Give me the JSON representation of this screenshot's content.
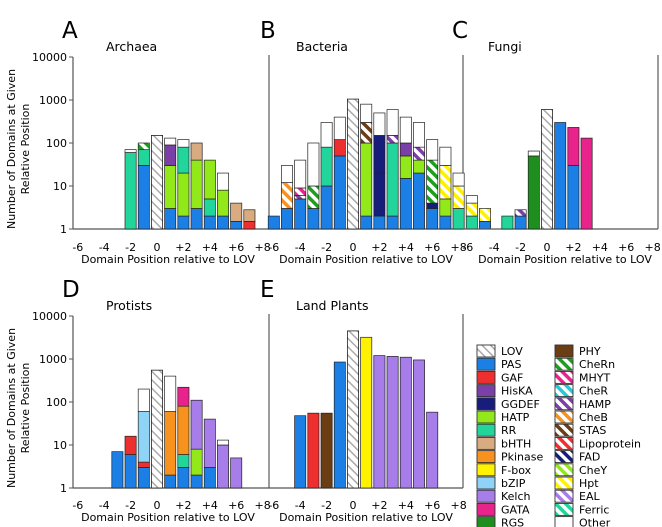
{
  "figure": {
    "ylabel_line1": "Number of Domains at Given",
    "ylabel_line2": "Relative Position",
    "xlabel": "Domain Position relative to LOV",
    "y_tick_labels": [
      "1",
      "10",
      "100",
      "1000",
      "10000"
    ],
    "x_tick_labels": [
      "-6",
      "-4",
      "-2",
      "0",
      "+2",
      "+4",
      "+6",
      "+8"
    ]
  },
  "legend": [
    {
      "label": "LOV",
      "color": "#ffffff",
      "pattern": "hatch-gray"
    },
    {
      "label": "PAS",
      "color": "#1b7fe6"
    },
    {
      "label": "GAF",
      "color": "#ee2f2f"
    },
    {
      "label": "HisKA",
      "color": "#7b3fa8"
    },
    {
      "label": "GGDEF",
      "color": "#161d7a"
    },
    {
      "label": "HATP",
      "color": "#93e81a"
    },
    {
      "label": "RR",
      "color": "#22d69b"
    },
    {
      "label": "bHTH",
      "color": "#d8ab80"
    },
    {
      "label": "Pkinase",
      "color": "#f7921e"
    },
    {
      "label": "F-box",
      "color": "#fff200"
    },
    {
      "label": "bZIP",
      "color": "#8fd3f7"
    },
    {
      "label": "Kelch",
      "color": "#a77de9"
    },
    {
      "label": "GATA",
      "color": "#e8238c"
    },
    {
      "label": "RGS",
      "color": "#1e8f1e"
    },
    {
      "label": "PHY",
      "color": "#6b3d12"
    },
    {
      "label": "CheRn",
      "color": "#ffffff",
      "pattern": "stripe",
      "stripe_color": "#1e9e1e"
    },
    {
      "label": "MHYT",
      "color": "#ffffff",
      "pattern": "stripe",
      "stripe_color": "#e8238c"
    },
    {
      "label": "CheR",
      "color": "#ffffff",
      "pattern": "stripe",
      "stripe_color": "#22c9d6"
    },
    {
      "label": "HAMP",
      "color": "#ffffff",
      "pattern": "stripe",
      "stripe_color": "#7b3fa8"
    },
    {
      "label": "CheB",
      "color": "#ffffff",
      "pattern": "stripe",
      "stripe_color": "#f7921e"
    },
    {
      "label": "STAS",
      "color": "#ffffff",
      "pattern": "stripe",
      "stripe_color": "#6b3d12"
    },
    {
      "label": "Lipoprotein",
      "color": "#ffffff",
      "pattern": "stripe",
      "stripe_color": "#ee2f2f"
    },
    {
      "label": "FAD",
      "color": "#ffffff",
      "pattern": "stripe",
      "stripe_color": "#161d7a"
    },
    {
      "label": "CheY",
      "color": "#ffffff",
      "pattern": "stripe",
      "stripe_color": "#93e81a"
    },
    {
      "label": "Hpt",
      "color": "#ffffff",
      "pattern": "stripe",
      "stripe_color": "#fff200"
    },
    {
      "label": "EAL",
      "color": "#ffffff",
      "pattern": "stripe",
      "stripe_color": "#a77de9"
    },
    {
      "label": "Ferric",
      "color": "#ffffff",
      "pattern": "stripe",
      "stripe_color": "#22d69b"
    },
    {
      "label": "Other",
      "color": "#ffffff"
    }
  ],
  "chart_data": [
    {
      "letter": "A",
      "title": "Archaea",
      "type": "bar",
      "yscale": "log",
      "ylim": [
        1,
        10000
      ],
      "stacks": [
        {
          "x": -2,
          "segments": [
            [
              "RR",
              60
            ],
            [
              "Other",
              70
            ]
          ]
        },
        {
          "x": -1,
          "segments": [
            [
              "PAS",
              30
            ],
            [
              "RR",
              70
            ],
            [
              "CheRn",
              100
            ]
          ]
        },
        {
          "x": 1,
          "segments": [
            [
              "PAS",
              3
            ],
            [
              "HATP",
              30
            ],
            [
              "HisKA",
              90
            ],
            [
              "Other",
              130
            ]
          ]
        },
        {
          "x": 2,
          "segments": [
            [
              "PAS",
              2
            ],
            [
              "HATP",
              20
            ],
            [
              "RR",
              80
            ],
            [
              "Other",
              120
            ]
          ]
        },
        {
          "x": 3,
          "segments": [
            [
              "PAS",
              3
            ],
            [
              "HATP",
              40
            ],
            [
              "bHTH",
              100
            ]
          ]
        },
        {
          "x": 4,
          "segments": [
            [
              "PAS",
              2
            ],
            [
              "RR",
              5
            ],
            [
              "HATP",
              40
            ]
          ]
        },
        {
          "x": 5,
          "segments": [
            [
              "PAS",
              2
            ],
            [
              "HATP",
              8
            ],
            [
              "Other",
              20
            ]
          ]
        },
        {
          "x": 6,
          "segments": [
            [
              "PAS",
              1.5
            ],
            [
              "bHTH",
              4
            ]
          ]
        },
        {
          "x": 7,
          "segments": [
            [
              "GAF",
              1.5
            ],
            [
              "bHTH",
              2.8
            ]
          ]
        }
      ]
    },
    {
      "letter": "B",
      "title": "Bacteria",
      "type": "bar",
      "yscale": "log",
      "ylim": [
        1,
        10000
      ],
      "stacks": [
        {
          "x": -6,
          "segments": [
            [
              "PAS",
              2
            ],
            [
              "Other",
              2
            ]
          ]
        },
        {
          "x": -5,
          "segments": [
            [
              "PAS",
              3
            ],
            [
              "CheB",
              12
            ],
            [
              "Other",
              30
            ]
          ]
        },
        {
          "x": -4,
          "segments": [
            [
              "PAS",
              5
            ],
            [
              "HAMP",
              6
            ],
            [
              "MHYT",
              9
            ],
            [
              "Other",
              40
            ]
          ]
        },
        {
          "x": -3,
          "segments": [
            [
              "PAS",
              3
            ],
            [
              "CheRn",
              10
            ],
            [
              "Other",
              100
            ]
          ]
        },
        {
          "x": -2,
          "segments": [
            [
              "PAS",
              10
            ],
            [
              "RR",
              80
            ],
            [
              "Other",
              300
            ]
          ]
        },
        {
          "x": -1,
          "segments": [
            [
              "PAS",
              50
            ],
            [
              "GAF",
              120
            ],
            [
              "Other",
              400
            ]
          ]
        },
        {
          "x": 1,
          "segments": [
            [
              "PAS",
              2
            ],
            [
              "HATP",
              100
            ],
            [
              "STAS",
              300
            ],
            [
              "Other",
              800
            ]
          ]
        },
        {
          "x": 2,
          "segments": [
            [
              "PAS",
              2
            ],
            [
              "GGDEF",
              20
            ],
            [
              "GGDEF",
              150
            ],
            [
              "Other",
              500
            ]
          ]
        },
        {
          "x": 3,
          "segments": [
            [
              "PAS",
              2
            ],
            [
              "RR",
              100
            ],
            [
              "HAMP",
              150
            ],
            [
              "Other",
              600
            ]
          ]
        },
        {
          "x": 4,
          "segments": [
            [
              "PAS",
              15
            ],
            [
              "HATP",
              50
            ],
            [
              "HisKA",
              100
            ],
            [
              "Other",
              400
            ]
          ]
        },
        {
          "x": 5,
          "segments": [
            [
              "PAS",
              20
            ],
            [
              "HATP",
              40
            ],
            [
              "HAMP",
              80
            ],
            [
              "Other",
              300
            ]
          ]
        },
        {
          "x": 6,
          "segments": [
            [
              "PAS",
              3
            ],
            [
              "GGDEF",
              4
            ],
            [
              "CheRn",
              40
            ],
            [
              "Other",
              120
            ]
          ]
        },
        {
          "x": 7,
          "segments": [
            [
              "PAS",
              2
            ],
            [
              "HATP",
              5
            ],
            [
              "Hpt",
              30
            ],
            [
              "Other",
              80
            ]
          ]
        },
        {
          "x": 8,
          "segments": [
            [
              "RR",
              3
            ],
            [
              "Hpt",
              10
            ],
            [
              "Other",
              20
            ]
          ]
        },
        {
          "x": 9,
          "segments": [
            [
              "RR",
              2
            ],
            [
              "Hpt",
              4
            ],
            [
              "Other",
              6
            ]
          ]
        },
        {
          "x": 10,
          "segments": [
            [
              "PAS",
              1.5
            ],
            [
              "Hpt",
              3
            ]
          ]
        }
      ]
    },
    {
      "letter": "C",
      "title": "Fungi",
      "type": "bar",
      "yscale": "log",
      "ylim": [
        1,
        10000
      ],
      "stacks": [
        {
          "x": -3,
          "segments": [
            [
              "RR",
              2
            ]
          ]
        },
        {
          "x": -2,
          "segments": [
            [
              "PAS",
              2
            ],
            [
              "HAMP",
              2.8
            ]
          ]
        },
        {
          "x": -1,
          "segments": [
            [
              "RGS",
              50
            ],
            [
              "Other",
              65
            ]
          ]
        },
        {
          "x": 1,
          "segments": [
            [
              "PAS",
              300
            ]
          ]
        },
        {
          "x": 2,
          "segments": [
            [
              "PAS",
              30
            ],
            [
              "GATA",
              230
            ]
          ]
        },
        {
          "x": 3,
          "segments": [
            [
              "GATA",
              130
            ]
          ]
        }
      ]
    },
    {
      "letter": "D",
      "title": "Protists",
      "type": "bar",
      "yscale": "log",
      "ylim": [
        1,
        10000
      ],
      "stacks": [
        {
          "x": -3,
          "segments": [
            [
              "PAS",
              7
            ]
          ]
        },
        {
          "x": -2,
          "segments": [
            [
              "PAS",
              6
            ],
            [
              "GAF",
              16
            ]
          ]
        },
        {
          "x": -1,
          "segments": [
            [
              "PAS",
              3
            ],
            [
              "GAF",
              4
            ],
            [
              "bZIP",
              60
            ],
            [
              "Other",
              200
            ]
          ]
        },
        {
          "x": 1,
          "segments": [
            [
              "PAS",
              2
            ],
            [
              "Pkinase",
              60
            ],
            [
              "Other",
              400
            ]
          ]
        },
        {
          "x": 2,
          "segments": [
            [
              "PAS",
              3
            ],
            [
              "RR",
              6
            ],
            [
              "Pkinase",
              80
            ],
            [
              "GATA",
              220
            ]
          ]
        },
        {
          "x": 3,
          "segments": [
            [
              "PAS",
              2
            ],
            [
              "HATP",
              8
            ],
            [
              "Kelch",
              110
            ]
          ]
        },
        {
          "x": 4,
          "segments": [
            [
              "PAS",
              3
            ],
            [
              "Kelch",
              40
            ]
          ]
        },
        {
          "x": 5,
          "segments": [
            [
              "Kelch",
              10
            ],
            [
              "Other",
              13
            ]
          ]
        },
        {
          "x": 6,
          "segments": [
            [
              "Kelch",
              5
            ]
          ]
        }
      ]
    },
    {
      "letter": "E",
      "title": "Land Plants",
      "type": "bar",
      "yscale": "log",
      "ylim": [
        1,
        10000
      ],
      "stacks": [
        {
          "x": -4,
          "segments": [
            [
              "PAS",
              48
            ]
          ]
        },
        {
          "x": -3,
          "segments": [
            [
              "GAF",
              55
            ]
          ]
        },
        {
          "x": -2,
          "segments": [
            [
              "PHY",
              55
            ]
          ]
        },
        {
          "x": -1,
          "segments": [
            [
              "PAS",
              850
            ]
          ]
        },
        {
          "x": 1,
          "segments": [
            [
              "F-box",
              3200
            ]
          ]
        },
        {
          "x": 2,
          "segments": [
            [
              "Kelch",
              1200
            ]
          ]
        },
        {
          "x": 3,
          "segments": [
            [
              "Kelch",
              1150
            ]
          ]
        },
        {
          "x": 4,
          "segments": [
            [
              "Kelch",
              1100
            ]
          ]
        },
        {
          "x": 5,
          "segments": [
            [
              "Kelch",
              950
            ]
          ]
        },
        {
          "x": 6,
          "segments": [
            [
              "Kelch",
              58
            ]
          ]
        }
      ]
    }
  ],
  "lov_bars": {
    "A": 150,
    "B": 1050,
    "C": 600,
    "D": 550,
    "E": 4500
  }
}
